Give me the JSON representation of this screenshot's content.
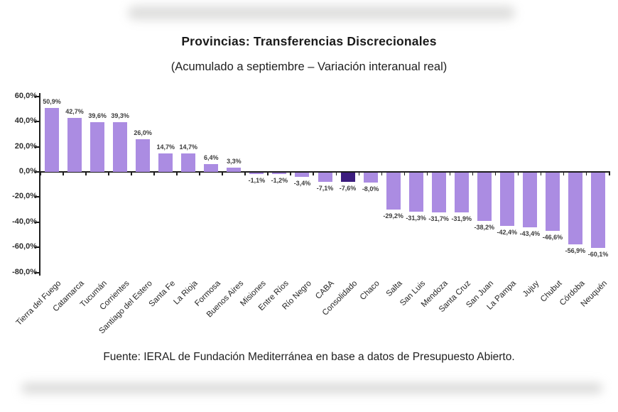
{
  "chart": {
    "title": "Provincias: Transferencias Discrecionales",
    "subtitle": "(Acumulado a septiembre – Variación interanual real)",
    "source": "Fuente: IERAL de Fundación Mediterránea en base a datos de Presupuesto Abierto."
  },
  "chart_data": {
    "type": "bar",
    "title": "Provincias: Transferencias Discrecionales",
    "subtitle": "(Acumulado a septiembre – Variación interanual real)",
    "xlabel": "",
    "ylabel": "",
    "ylim": [
      -80,
      60
    ],
    "grid": false,
    "legend": false,
    "categories": [
      "Tierra del Fuego",
      "Catamarca",
      "Tucumán",
      "Corrientes",
      "Santiago del Estero",
      "Santa Fe",
      "La Rioja",
      "Formosa",
      "Buenos Aires",
      "Misiones",
      "Entre Ríos",
      "Río Negro",
      "CABA",
      "Consolidado",
      "Chaco",
      "Salta",
      "San Luis",
      "Mendoza",
      "Santa Cruz",
      "San Juan",
      "La Pampa",
      "Jujuy",
      "Chubut",
      "Córdoba",
      "Neuquén"
    ],
    "values": [
      50.9,
      42.7,
      39.6,
      39.3,
      26.0,
      14.7,
      14.7,
      6.4,
      3.3,
      -1.1,
      -1.2,
      -3.4,
      -7.1,
      -7.6,
      -8.0,
      -29.2,
      -31.3,
      -31.7,
      -31.9,
      -38.2,
      -42.4,
      -43.4,
      -46.6,
      -56.9,
      -60.1
    ],
    "value_labels": [
      "50,9%",
      "42,7%",
      "39,6%",
      "39,3%",
      "26,0%",
      "14,7%",
      "14,7%",
      "6,4%",
      "3,3%",
      "-1,1%",
      "-1,2%",
      "-3,4%",
      "-7,1%",
      "-7,6%",
      "-8,0%",
      "-29,2%",
      "-31,3%",
      "-31,7%",
      "-31,9%",
      "-38,2%",
      "-42,4%",
      "-43,4%",
      "-46,6%",
      "-56,9%",
      "-60,1%"
    ],
    "y_ticks": [
      60,
      40,
      20,
      0,
      -20,
      -40,
      -60,
      -80
    ],
    "y_tick_labels": [
      "60,0%",
      "40,0%",
      "20,0%",
      "0,0%",
      "-20,0%",
      "-40,0%",
      "-60,0%",
      "-80,0%"
    ],
    "bar_color": "#ab8ce2",
    "highlight_index": 13,
    "highlight_color": "#3c1d7e",
    "source": "Fuente: IERAL de Fundación Mediterránea en base a datos de Presupuesto Abierto."
  }
}
